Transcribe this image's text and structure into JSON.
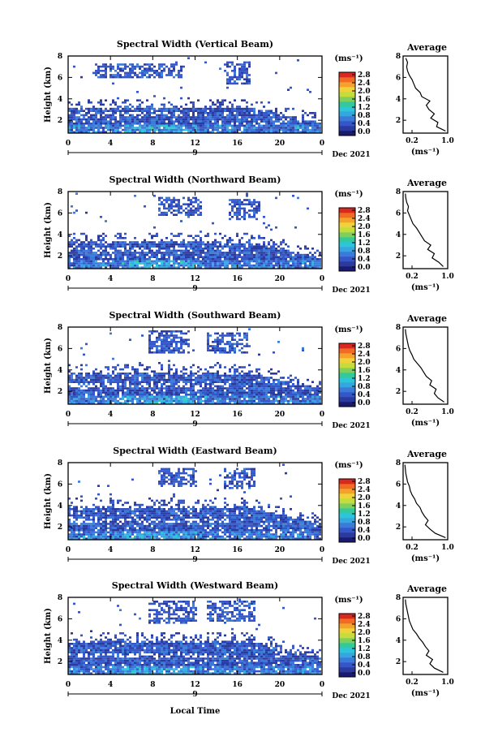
{
  "figure": {
    "xlabel": "Local Time",
    "date_label": "Dec 2021",
    "colorbar_unit": "(ms⁻¹)",
    "colorbar_ticks": [
      "0.0",
      "0.4",
      "0.8",
      "1.2",
      "1.6",
      "2.0",
      "2.4",
      "2.8"
    ],
    "colorbar_colors": [
      "#1a1a6e",
      "#2b3a9e",
      "#3456c8",
      "#3a7ad8",
      "#35a6e0",
      "#2cc6d8",
      "#33c99a",
      "#7fd05a",
      "#c6dc3c",
      "#f0d23a",
      "#f5a22d",
      "#f26b25",
      "#d9281f"
    ],
    "profile_title": "Average",
    "profile_unit": "(ms⁻¹)"
  },
  "chart_data": [
    {
      "type": "heatmap",
      "title": "Spectral Width (Vertical Beam)",
      "ylabel": "Height (km)",
      "xlim": [
        0,
        24
      ],
      "ylim": [
        0.8,
        8
      ],
      "x_ticks": [
        "0",
        "4",
        "8",
        "12",
        "16",
        "20",
        "0"
      ],
      "day_label": "9",
      "y_ticks": [
        "2",
        "4",
        "6",
        "8"
      ],
      "colorbar_range": [
        0,
        2.8
      ],
      "coverage": {
        "low_layer_top_km": 3.3,
        "high_patches": [
          [
            14.8,
            17.2,
            5.5,
            7.6
          ],
          [
            2.5,
            11,
            6.0,
            7.4
          ]
        ]
      },
      "average_profile": {
        "xlim": [
          0,
          1.0
        ],
        "x_ticks": [
          "0.2",
          "1.0"
        ],
        "y_ticks": [
          "2",
          "4",
          "6",
          "8"
        ],
        "height_km": [
          1.0,
          1.4,
          1.8,
          2.2,
          2.6,
          3.0,
          3.4,
          3.8,
          4.2,
          4.6,
          5.0,
          5.4,
          5.8,
          6.2,
          6.6,
          7.0,
          7.4,
          7.8
        ],
        "value": [
          0.95,
          0.75,
          0.78,
          0.62,
          0.7,
          0.58,
          0.52,
          0.6,
          0.42,
          0.38,
          0.28,
          0.24,
          0.2,
          0.14,
          0.1,
          0.08,
          0.1,
          0.06
        ]
      }
    },
    {
      "type": "heatmap",
      "title": "Spectral Width (Northward Beam)",
      "ylabel": "Height (km)",
      "xlim": [
        0,
        24
      ],
      "ylim": [
        0.8,
        8
      ],
      "x_ticks": [
        "0",
        "4",
        "8",
        "12",
        "16",
        "20",
        "0"
      ],
      "day_label": "9",
      "y_ticks": [
        "2",
        "4",
        "6",
        "8"
      ],
      "colorbar_range": [
        0,
        2.8
      ],
      "coverage": {
        "low_layer_top_km": 3.4,
        "high_patches": [
          [
            8.5,
            12.5,
            5.8,
            7.6
          ],
          [
            15,
            18,
            5.5,
            7.4
          ]
        ]
      },
      "average_profile": {
        "xlim": [
          0,
          1.0
        ],
        "x_ticks": [
          "0.2",
          "1.0"
        ],
        "y_ticks": [
          "2",
          "4",
          "6",
          "8"
        ],
        "height_km": [
          1.0,
          1.4,
          1.8,
          2.2,
          2.6,
          3.0,
          3.4,
          3.8,
          4.2,
          4.6,
          5.0,
          5.4,
          5.8,
          6.2,
          6.6,
          7.0,
          7.4,
          7.8
        ],
        "value": [
          0.9,
          0.8,
          0.65,
          0.7,
          0.55,
          0.62,
          0.48,
          0.42,
          0.36,
          0.3,
          0.22,
          0.18,
          0.14,
          0.1,
          0.12,
          0.08,
          0.06,
          0.05
        ]
      }
    },
    {
      "type": "heatmap",
      "title": "Spectral Width (Southward Beam)",
      "ylabel": "Height (km)",
      "xlim": [
        0,
        24
      ],
      "ylim": [
        0.8,
        8
      ],
      "x_ticks": [
        "0",
        "4",
        "8",
        "12",
        "16",
        "20",
        "0"
      ],
      "day_label": "9",
      "y_ticks": [
        "2",
        "4",
        "6",
        "8"
      ],
      "colorbar_range": [
        0,
        2.8
      ],
      "coverage": {
        "low_layer_top_km": 3.8,
        "high_patches": [
          [
            7.5,
            11.5,
            5.6,
            7.7
          ],
          [
            13,
            17,
            5.6,
            7.6
          ]
        ]
      },
      "average_profile": {
        "xlim": [
          0,
          1.0
        ],
        "x_ticks": [
          "0.2",
          "1.0"
        ],
        "y_ticks": [
          "2",
          "4",
          "6",
          "8"
        ],
        "height_km": [
          1.0,
          1.4,
          1.8,
          2.2,
          2.6,
          3.0,
          3.4,
          3.8,
          4.2,
          4.6,
          5.0,
          5.4,
          5.8,
          6.2,
          6.6,
          7.0,
          7.4,
          7.8
        ],
        "value": [
          0.92,
          0.78,
          0.7,
          0.74,
          0.6,
          0.64,
          0.52,
          0.46,
          0.4,
          0.32,
          0.24,
          0.2,
          0.15,
          0.12,
          0.1,
          0.08,
          0.06,
          0.05
        ]
      }
    },
    {
      "type": "heatmap",
      "title": "Spectral Width (Eastward Beam)",
      "ylabel": "Height (km)",
      "xlim": [
        0,
        24
      ],
      "ylim": [
        0.8,
        8
      ],
      "x_ticks": [
        "0",
        "4",
        "8",
        "12",
        "16",
        "20",
        "0"
      ],
      "day_label": "9",
      "y_ticks": [
        "2",
        "4",
        "6",
        "8"
      ],
      "colorbar_range": [
        0,
        2.8
      ],
      "coverage": {
        "low_layer_top_km": 3.9,
        "high_patches": [
          [
            8.5,
            12,
            5.8,
            7.6
          ],
          [
            14.5,
            17.5,
            5.6,
            7.5
          ]
        ]
      },
      "average_profile": {
        "xlim": [
          0,
          1.0
        ],
        "x_ticks": [
          "0.2",
          "1.0"
        ],
        "y_ticks": [
          "2",
          "4",
          "6",
          "8"
        ],
        "height_km": [
          1.0,
          1.4,
          1.8,
          2.2,
          2.6,
          3.0,
          3.4,
          3.8,
          4.2,
          4.6,
          5.0,
          5.4,
          5.8,
          6.2,
          6.6,
          7.0,
          7.4,
          7.8
        ],
        "value": [
          0.95,
          0.72,
          0.6,
          0.5,
          0.56,
          0.48,
          0.42,
          0.38,
          0.3,
          0.26,
          0.2,
          0.16,
          0.14,
          0.1,
          0.08,
          0.06,
          0.05,
          0.04
        ]
      }
    },
    {
      "type": "heatmap",
      "title": "Spectral Width (Westward Beam)",
      "ylabel": "Height (km)",
      "xlim": [
        0,
        24
      ],
      "ylim": [
        0.8,
        8
      ],
      "x_ticks": [
        "0",
        "4",
        "8",
        "12",
        "16",
        "20",
        "0"
      ],
      "day_label": "9",
      "y_ticks": [
        "2",
        "4",
        "6",
        "8"
      ],
      "colorbar_range": [
        0,
        2.8
      ],
      "coverage": {
        "low_layer_top_km": 4.0,
        "high_patches": [
          [
            7.5,
            12,
            5.6,
            7.8
          ],
          [
            13,
            17.5,
            5.8,
            7.7
          ]
        ]
      },
      "average_profile": {
        "xlim": [
          0,
          1.0
        ],
        "x_ticks": [
          "0.2",
          "1.0"
        ],
        "y_ticks": [
          "2",
          "4",
          "6",
          "8"
        ],
        "height_km": [
          1.0,
          1.4,
          1.8,
          2.2,
          2.6,
          3.0,
          3.4,
          3.8,
          4.2,
          4.6,
          5.0,
          5.4,
          5.8,
          6.2,
          6.6,
          7.0,
          7.4,
          7.8
        ],
        "value": [
          0.9,
          0.7,
          0.6,
          0.66,
          0.52,
          0.58,
          0.5,
          0.44,
          0.36,
          0.3,
          0.22,
          0.18,
          0.14,
          0.12,
          0.1,
          0.08,
          0.06,
          0.05
        ]
      }
    }
  ]
}
